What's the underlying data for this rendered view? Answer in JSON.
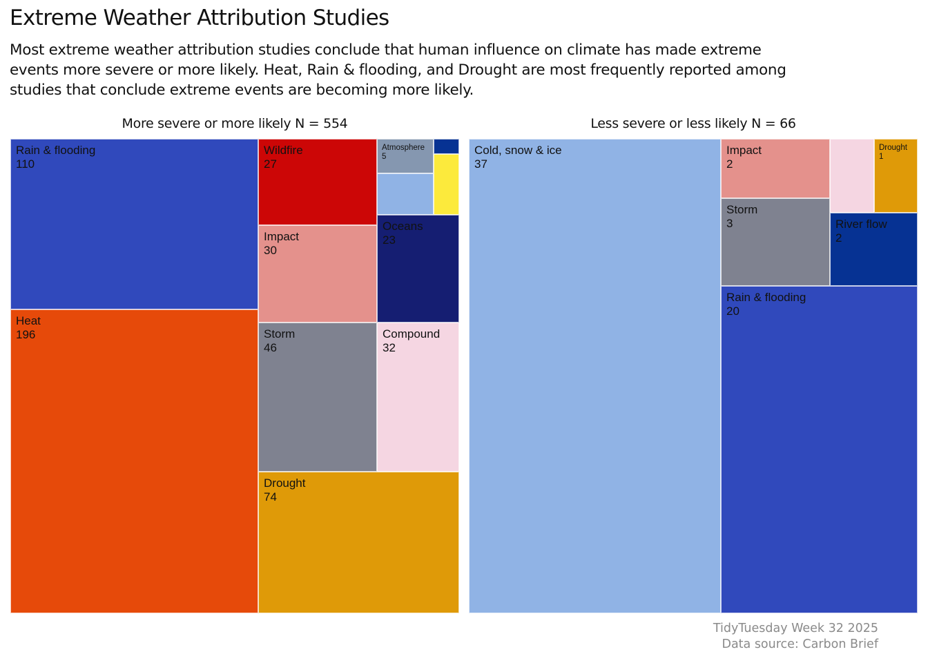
{
  "title": "Extreme Weather Attribution Studies",
  "subtitle": "Most extreme weather attribution studies conclude that human influence on climate has made extreme events more severe or more likely. Heat, Rain & flooding, and Drought are most frequently reported among studies that conclude extreme events are becoming more likely.",
  "caption": {
    "line1": "TidyTuesday Week 32 2025",
    "line2": "Data source: Carbon Brief"
  },
  "chart_data": [
    {
      "type": "treemap",
      "title": "More severe or more likely N = 554",
      "total": 554,
      "tiles": [
        {
          "name": "Heat",
          "value": 196,
          "color": "#E64A0A"
        },
        {
          "name": "Rain & flooding",
          "value": 110,
          "color": "#3049BC"
        },
        {
          "name": "Drought",
          "value": 74,
          "color": "#DF9A08"
        },
        {
          "name": "Storm",
          "value": 46,
          "color": "#7F8290"
        },
        {
          "name": "Compound",
          "value": 32,
          "color": "#F5D6E2"
        },
        {
          "name": "Impact",
          "value": 30,
          "color": "#E4918C"
        },
        {
          "name": "Wildfire",
          "value": 27,
          "color": "#CC0606"
        },
        {
          "name": "Oceans",
          "value": 23,
          "color": "#151E72"
        },
        {
          "name": "Atmosphere",
          "value": 5,
          "color": "#8597B0"
        },
        {
          "value": null,
          "color": "#90B3E5"
        },
        {
          "value": null,
          "color": "#FCEA3C"
        },
        {
          "value": null,
          "color": "#063293"
        }
      ]
    },
    {
      "type": "treemap",
      "title": "Less severe or less likely N = 66",
      "total": 66,
      "tiles": [
        {
          "name": "Cold, snow & ice",
          "value": 37,
          "color": "#90B3E5"
        },
        {
          "name": "Rain & flooding",
          "value": 20,
          "color": "#3049BC"
        },
        {
          "name": "Storm",
          "value": 3,
          "color": "#7F8290"
        },
        {
          "name": "Impact",
          "value": 2,
          "color": "#E4918C"
        },
        {
          "name": "River flow",
          "value": 2,
          "color": "#063293"
        },
        {
          "name": "Drought",
          "value": 1,
          "color": "#DF9A08"
        },
        {
          "value": null,
          "color": "#F5D6E2"
        }
      ]
    }
  ]
}
